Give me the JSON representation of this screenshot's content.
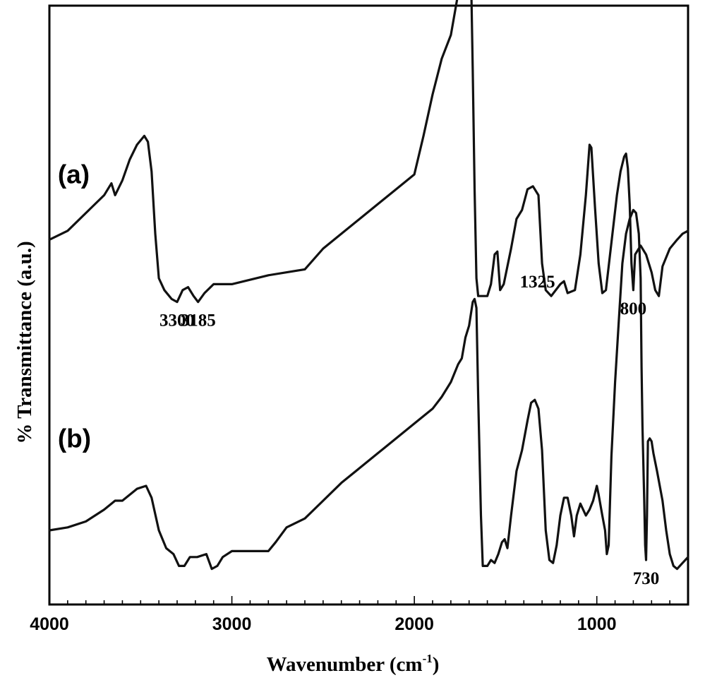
{
  "chart_data": {
    "type": "line",
    "title": "",
    "xlabel": "Wavenumber (cm",
    "xlabel_sup": "-1",
    "xlabel_close": ")",
    "ylabel": "% Transmittance (a.u.)",
    "xlim": [
      4000,
      500
    ],
    "x_reversed": true,
    "y_ticks_shown": false,
    "x_ticks": [
      {
        "value": 4000,
        "label": "4000"
      },
      {
        "value": 3000,
        "label": "3000"
      },
      {
        "value": 2000,
        "label": "2000"
      },
      {
        "value": 1000,
        "label": "1000"
      }
    ],
    "x_minor_step": 100,
    "panel_labels": [
      {
        "text": "(a)",
        "x": 3900,
        "offset": 1.22
      },
      {
        "text": "(b)",
        "x": 3900,
        "offset": 0.33
      }
    ],
    "series": [
      {
        "id": "a",
        "offset": 1.0,
        "points": [
          [
            4000,
            0.03
          ],
          [
            3900,
            0.06
          ],
          [
            3800,
            0.12
          ],
          [
            3700,
            0.18
          ],
          [
            3660,
            0.22
          ],
          [
            3640,
            0.18
          ],
          [
            3600,
            0.23
          ],
          [
            3560,
            0.3
          ],
          [
            3520,
            0.35
          ],
          [
            3480,
            0.38
          ],
          [
            3460,
            0.36
          ],
          [
            3440,
            0.26
          ],
          [
            3420,
            0.05
          ],
          [
            3400,
            -0.1
          ],
          [
            3370,
            -0.14
          ],
          [
            3330,
            -0.17
          ],
          [
            3300,
            -0.18
          ],
          [
            3270,
            -0.14
          ],
          [
            3240,
            -0.13
          ],
          [
            3210,
            -0.16
          ],
          [
            3185,
            -0.18
          ],
          [
            3150,
            -0.15
          ],
          [
            3100,
            -0.12
          ],
          [
            3000,
            -0.12
          ],
          [
            2800,
            -0.09
          ],
          [
            2600,
            -0.07
          ],
          [
            2500,
            0.0
          ],
          [
            2400,
            0.05
          ],
          [
            2300,
            0.1
          ],
          [
            2200,
            0.15
          ],
          [
            2100,
            0.2
          ],
          [
            2000,
            0.25
          ],
          [
            1950,
            0.38
          ],
          [
            1900,
            0.52
          ],
          [
            1850,
            0.64
          ],
          [
            1800,
            0.72
          ],
          [
            1760,
            0.86
          ],
          [
            1740,
            0.98
          ],
          [
            1720,
            1.03
          ],
          [
            1700,
            1.02
          ],
          [
            1690,
            0.95
          ],
          [
            1680,
            0.6
          ],
          [
            1670,
            0.2
          ],
          [
            1660,
            -0.1
          ],
          [
            1650,
            -0.16
          ],
          [
            1620,
            -0.16
          ],
          [
            1600,
            -0.16
          ],
          [
            1580,
            -0.12
          ],
          [
            1560,
            -0.02
          ],
          [
            1545,
            -0.01
          ],
          [
            1530,
            -0.14
          ],
          [
            1510,
            -0.12
          ],
          [
            1470,
            0.0
          ],
          [
            1440,
            0.1
          ],
          [
            1410,
            0.13
          ],
          [
            1380,
            0.2
          ],
          [
            1350,
            0.21
          ],
          [
            1320,
            0.18
          ],
          [
            1300,
            -0.05
          ],
          [
            1280,
            -0.14
          ],
          [
            1250,
            -0.16
          ],
          [
            1200,
            -0.12
          ],
          [
            1180,
            -0.11
          ],
          [
            1160,
            -0.15
          ],
          [
            1120,
            -0.14
          ],
          [
            1090,
            -0.02
          ],
          [
            1060,
            0.18
          ],
          [
            1040,
            0.35
          ],
          [
            1030,
            0.34
          ],
          [
            1010,
            0.14
          ],
          [
            990,
            -0.05
          ],
          [
            970,
            -0.15
          ],
          [
            950,
            -0.14
          ],
          [
            920,
            0.02
          ],
          [
            890,
            0.18
          ],
          [
            870,
            0.26
          ],
          [
            850,
            0.31
          ],
          [
            840,
            0.32
          ],
          [
            830,
            0.27
          ],
          [
            820,
            0.15
          ],
          [
            810,
            -0.05
          ],
          [
            800,
            -0.14
          ],
          [
            790,
            -0.02
          ],
          [
            760,
            0.01
          ],
          [
            730,
            -0.02
          ],
          [
            700,
            -0.08
          ],
          [
            680,
            -0.14
          ],
          [
            660,
            -0.16
          ],
          [
            640,
            -0.06
          ],
          [
            600,
            0.0
          ],
          [
            560,
            0.03
          ],
          [
            530,
            0.05
          ],
          [
            500,
            0.06
          ]
        ]
      },
      {
        "id": "b",
        "offset": 0.0,
        "points": [
          [
            4000,
            0.05
          ],
          [
            3900,
            0.06
          ],
          [
            3800,
            0.08
          ],
          [
            3700,
            0.12
          ],
          [
            3640,
            0.15
          ],
          [
            3600,
            0.15
          ],
          [
            3520,
            0.19
          ],
          [
            3470,
            0.2
          ],
          [
            3440,
            0.16
          ],
          [
            3400,
            0.05
          ],
          [
            3360,
            -0.01
          ],
          [
            3320,
            -0.03
          ],
          [
            3290,
            -0.07
          ],
          [
            3260,
            -0.07
          ],
          [
            3230,
            -0.04
          ],
          [
            3190,
            -0.04
          ],
          [
            3140,
            -0.03
          ],
          [
            3110,
            -0.08
          ],
          [
            3080,
            -0.07
          ],
          [
            3050,
            -0.04
          ],
          [
            3000,
            -0.02
          ],
          [
            2900,
            -0.02
          ],
          [
            2800,
            -0.02
          ],
          [
            2760,
            0.01
          ],
          [
            2700,
            0.06
          ],
          [
            2600,
            0.09
          ],
          [
            2500,
            0.15
          ],
          [
            2400,
            0.21
          ],
          [
            2300,
            0.26
          ],
          [
            2200,
            0.31
          ],
          [
            2100,
            0.36
          ],
          [
            2000,
            0.41
          ],
          [
            1900,
            0.46
          ],
          [
            1850,
            0.5
          ],
          [
            1800,
            0.55
          ],
          [
            1760,
            0.61
          ],
          [
            1740,
            0.63
          ],
          [
            1720,
            0.7
          ],
          [
            1700,
            0.74
          ],
          [
            1680,
            0.82
          ],
          [
            1670,
            0.83
          ],
          [
            1660,
            0.8
          ],
          [
            1650,
            0.5
          ],
          [
            1635,
            0.1
          ],
          [
            1625,
            -0.07
          ],
          [
            1600,
            -0.07
          ],
          [
            1580,
            -0.05
          ],
          [
            1560,
            -0.06
          ],
          [
            1540,
            -0.03
          ],
          [
            1520,
            0.01
          ],
          [
            1505,
            0.02
          ],
          [
            1490,
            -0.01
          ],
          [
            1470,
            0.1
          ],
          [
            1440,
            0.25
          ],
          [
            1410,
            0.32
          ],
          [
            1380,
            0.42
          ],
          [
            1360,
            0.48
          ],
          [
            1340,
            0.49
          ],
          [
            1320,
            0.46
          ],
          [
            1300,
            0.32
          ],
          [
            1280,
            0.05
          ],
          [
            1260,
            -0.05
          ],
          [
            1240,
            -0.06
          ],
          [
            1220,
            0.0
          ],
          [
            1200,
            0.1
          ],
          [
            1180,
            0.16
          ],
          [
            1160,
            0.16
          ],
          [
            1140,
            0.1
          ],
          [
            1125,
            0.03
          ],
          [
            1110,
            0.1
          ],
          [
            1090,
            0.14
          ],
          [
            1060,
            0.1
          ],
          [
            1040,
            0.12
          ],
          [
            1020,
            0.15
          ],
          [
            1000,
            0.2
          ],
          [
            990,
            0.17
          ],
          [
            970,
            0.1
          ],
          [
            955,
            0.05
          ],
          [
            945,
            -0.03
          ],
          [
            935,
            0.0
          ],
          [
            920,
            0.3
          ],
          [
            900,
            0.55
          ],
          [
            880,
            0.75
          ],
          [
            860,
            0.95
          ],
          [
            840,
            1.05
          ],
          [
            820,
            1.1
          ],
          [
            800,
            1.13
          ],
          [
            785,
            1.12
          ],
          [
            770,
            1.05
          ],
          [
            760,
            0.9
          ],
          [
            755,
            0.6
          ],
          [
            750,
            0.4
          ],
          [
            740,
            0.15
          ],
          [
            735,
            0.0
          ],
          [
            730,
            -0.05
          ],
          [
            725,
            0.1
          ],
          [
            720,
            0.35
          ],
          [
            710,
            0.36
          ],
          [
            700,
            0.35
          ],
          [
            690,
            0.31
          ],
          [
            670,
            0.25
          ],
          [
            640,
            0.15
          ],
          [
            620,
            0.05
          ],
          [
            600,
            -0.03
          ],
          [
            580,
            -0.07
          ],
          [
            560,
            -0.08
          ],
          [
            530,
            -0.06
          ],
          [
            500,
            -0.04
          ]
        ]
      }
    ],
    "peak_annotations": [
      {
        "series": "a",
        "x": 3300,
        "label": "3300"
      },
      {
        "series": "a",
        "x": 3185,
        "label": "3185"
      },
      {
        "series": "a",
        "x": 1325,
        "label": "1325"
      },
      {
        "series": "a",
        "x": 800,
        "label": "800"
      },
      {
        "series": "b",
        "x": 730,
        "label": "730"
      }
    ],
    "colors": {
      "line": "#111111",
      "axis": "#000000",
      "background": "#ffffff"
    }
  }
}
